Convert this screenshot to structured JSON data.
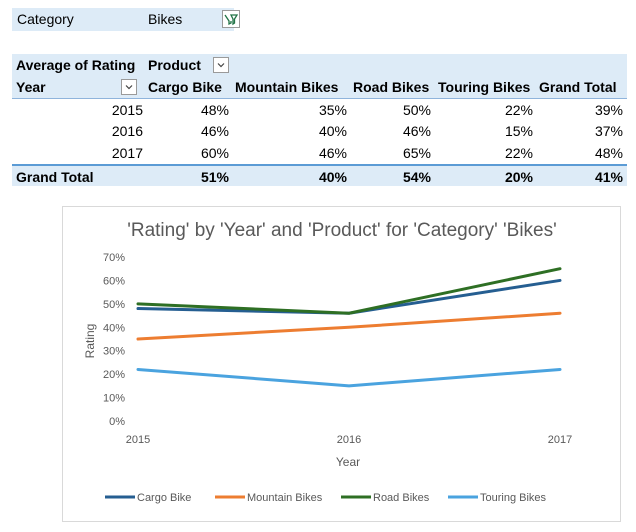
{
  "filter": {
    "label": "Category",
    "value": "Bikes"
  },
  "pivot": {
    "title": "Average of Rating",
    "column_field": "Product",
    "row_field": "Year",
    "columns": [
      "Cargo Bike",
      "Mountain Bikes",
      "Road Bikes",
      "Touring Bikes",
      "Grand Total"
    ],
    "rows": [
      {
        "year": "2015",
        "values": [
          "48%",
          "35%",
          "50%",
          "22%",
          "39%"
        ]
      },
      {
        "year": "2016",
        "values": [
          "46%",
          "40%",
          "46%",
          "15%",
          "37%"
        ]
      },
      {
        "year": "2017",
        "values": [
          "60%",
          "46%",
          "65%",
          "22%",
          "48%"
        ]
      }
    ],
    "grand_total": {
      "label": "Grand Total",
      "values": [
        "51%",
        "40%",
        "54%",
        "20%",
        "41%"
      ]
    }
  },
  "chart_data": {
    "type": "line",
    "title": "'Rating' by 'Year' and 'Product' for 'Category' 'Bikes'",
    "xlabel": "Year",
    "ylabel": "Rating",
    "x": [
      "2015",
      "2016",
      "2017"
    ],
    "ylim": [
      0,
      70
    ],
    "yticks": [
      "0%",
      "10%",
      "20%",
      "30%",
      "40%",
      "50%",
      "60%",
      "70%"
    ],
    "grid": false,
    "legend": "bottom",
    "series": [
      {
        "name": "Cargo Bike",
        "color": "#255e91",
        "values": [
          48,
          46,
          60
        ]
      },
      {
        "name": "Mountain Bikes",
        "color": "#ed7d31",
        "values": [
          35,
          40,
          46
        ]
      },
      {
        "name": "Road Bikes",
        "color": "#2e6f24",
        "values": [
          50,
          46,
          65
        ]
      },
      {
        "name": "Touring Bikes",
        "color": "#4aa3df",
        "values": [
          22,
          15,
          22
        ]
      }
    ]
  }
}
